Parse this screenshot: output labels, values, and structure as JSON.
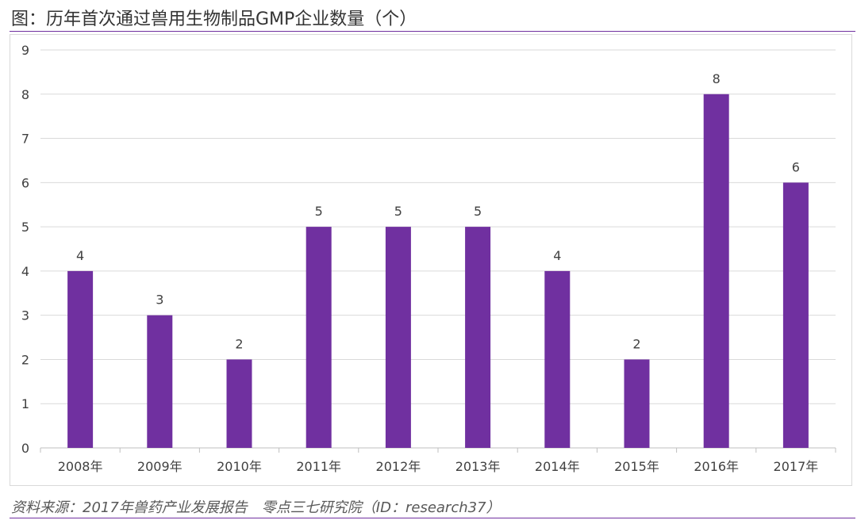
{
  "header": {
    "title": "图：历年首次通过兽用生物制品GMP企业数量（个）"
  },
  "footer": {
    "source": "资料来源：2017年兽药产业发展报告　零点三七研究院（ID：research37）"
  },
  "chart_data": {
    "type": "bar",
    "title": "图：历年首次通过兽用生物制品GMP企业数量（个）",
    "categories": [
      "2008年",
      "2009年",
      "2010年",
      "2011年",
      "2012年",
      "2013年",
      "2014年",
      "2015年",
      "2016年",
      "2017年"
    ],
    "values": [
      4,
      3,
      2,
      5,
      5,
      5,
      4,
      2,
      8,
      6
    ],
    "ylim": [
      0,
      9
    ],
    "yticks": [
      0,
      1,
      2,
      3,
      4,
      5,
      6,
      7,
      8,
      9
    ],
    "grid": true,
    "legend": "none",
    "data_labels": true,
    "colors": {
      "bar": "#7030a0",
      "grid": "#d9d9d9",
      "accent_rule": "#7030a0"
    }
  }
}
